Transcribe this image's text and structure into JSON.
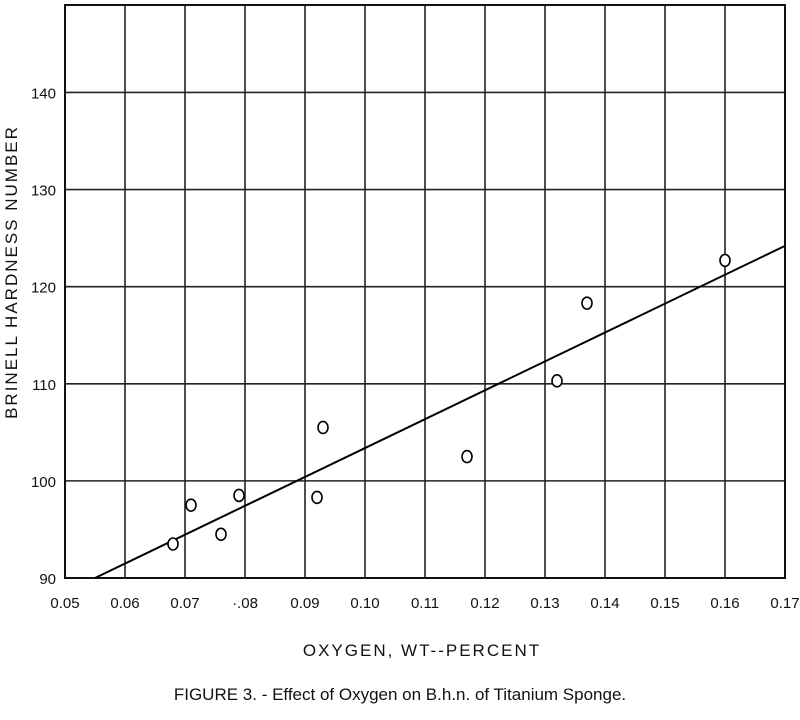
{
  "chart_data": {
    "type": "scatter",
    "xlabel": "OXYGEN, WT--PERCENT",
    "ylabel": "BRINELL HARDNESS NUMBER",
    "caption": "FIGURE 3. - Effect of Oxygen on B.h.n. of Titanium Sponge.",
    "xlim": [
      0.05,
      0.17
    ],
    "ylim": [
      90,
      149
    ],
    "x_ticks": [
      0.05,
      0.06,
      0.07,
      0.08,
      0.09,
      0.1,
      0.11,
      0.12,
      0.13,
      0.14,
      0.15,
      0.16,
      0.17
    ],
    "x_tick_labels": [
      "0.05",
      "0.06",
      "0.07",
      "·.08",
      "0.09",
      "0.10",
      "0.11",
      "0.12",
      "0.13",
      "0.14",
      "0.15",
      "0.16",
      "0.17"
    ],
    "y_ticks": [
      90,
      100,
      110,
      120,
      130,
      140
    ],
    "y_tick_labels": [
      "90",
      "100",
      "110",
      "120",
      "130",
      "140"
    ],
    "grid": true,
    "points": [
      {
        "x": 0.068,
        "y": 93.5
      },
      {
        "x": 0.071,
        "y": 97.5
      },
      {
        "x": 0.076,
        "y": 94.5
      },
      {
        "x": 0.079,
        "y": 98.5
      },
      {
        "x": 0.092,
        "y": 98.3
      },
      {
        "x": 0.093,
        "y": 105.5
      },
      {
        "x": 0.117,
        "y": 102.5
      },
      {
        "x": 0.132,
        "y": 110.3
      },
      {
        "x": 0.137,
        "y": 118.3
      },
      {
        "x": 0.16,
        "y": 122.7
      }
    ],
    "trend_line": [
      {
        "x": 0.055,
        "y": 90
      },
      {
        "x": 0.17,
        "y": 124.2
      }
    ]
  }
}
